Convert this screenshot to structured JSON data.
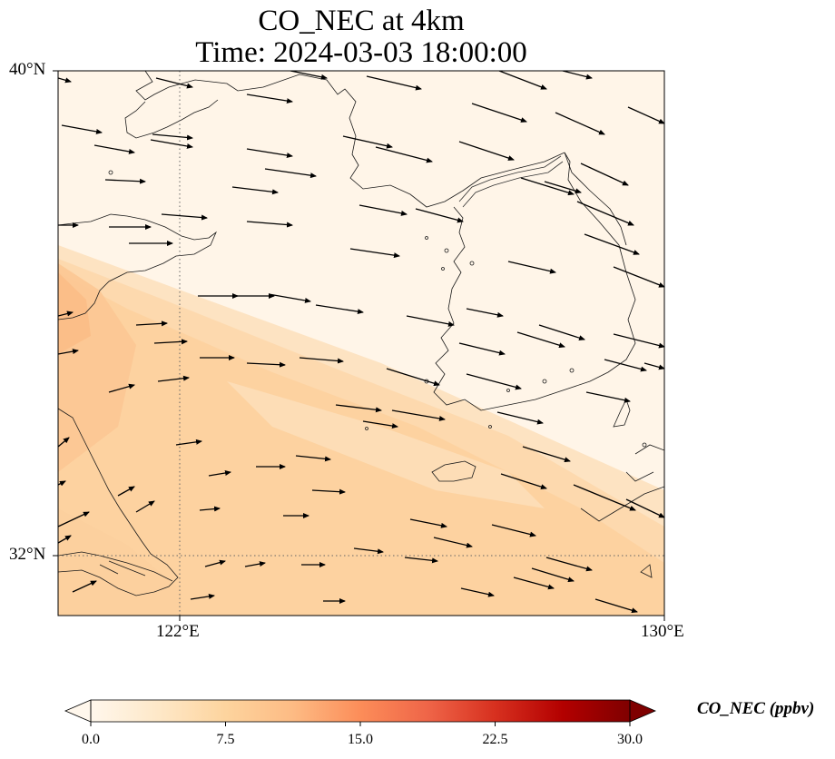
{
  "title_line1": "CO_NEC at 4km",
  "title_line2": "Time: 2024-03-03 18:00:00",
  "lat_labels": [
    "40°N",
    "32°N"
  ],
  "lon_labels": [
    "122°E",
    "130°E"
  ],
  "map_extent": {
    "lon_min": 120,
    "lon_max": 130,
    "lat_min": 31,
    "lat_max": 40
  },
  "gridlines": {
    "lons": [
      122,
      130
    ],
    "lats": [
      32,
      40
    ],
    "style": "dotted"
  },
  "colorbar": {
    "label": "CO_NEC (ppbv)",
    "ticks": [
      "0.0",
      "7.5",
      "15.0",
      "22.5",
      "30.0"
    ],
    "min": 0,
    "max": 30,
    "colormap": "OrRd",
    "colors": [
      "#fff7ec",
      "#fee8c8",
      "#fdd49e",
      "#fdbb84",
      "#fc8d59",
      "#ef6548",
      "#d7301f",
      "#b30000",
      "#7f0000"
    ],
    "extend": "both"
  },
  "field_description_colors": {
    "background": "#fff5e8",
    "plume": "#fdd9aa",
    "plume_strong": "#fcc794"
  },
  "wind_arrows_direction": "mostly eastward, turning east-southeast over eastern sea"
}
